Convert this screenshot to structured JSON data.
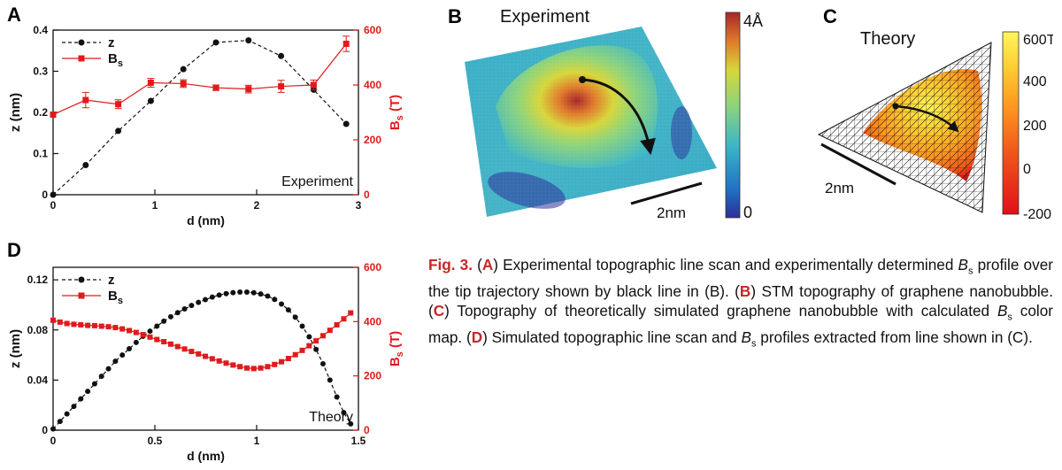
{
  "panels": {
    "a": "A",
    "b": "B",
    "c": "C",
    "d": "D"
  },
  "chart_data": [
    {
      "id": "A",
      "type": "line",
      "annotation": "Experiment",
      "xlabel": "d (nm)",
      "ylabel": "z (nm)",
      "y2label": "Bs (T)",
      "xlim": [
        0,
        3
      ],
      "ylim": [
        0,
        0.4
      ],
      "y2lim": [
        0,
        600
      ],
      "xticks": [
        "0",
        "1",
        "2",
        "3"
      ],
      "yticks": [
        "0",
        "0.1",
        "0.2",
        "0.3",
        "0.4"
      ],
      "y2ticks": [
        "0",
        "200",
        "400",
        "600"
      ],
      "series": [
        {
          "name": "z",
          "axis": "left",
          "color": "#111111",
          "marker": "circle",
          "dashed": true,
          "x": [
            0,
            0.32,
            0.64,
            0.96,
            1.28,
            1.6,
            1.92,
            2.24,
            2.56,
            2.88
          ],
          "y": [
            0,
            0.072,
            0.155,
            0.228,
            0.305,
            0.37,
            0.375,
            0.337,
            0.255,
            0.172
          ]
        },
        {
          "name": "Bs",
          "axis": "right",
          "color": "#e01b1b",
          "marker": "square",
          "dashed": false,
          "x": [
            0,
            0.32,
            0.64,
            0.96,
            1.28,
            1.6,
            1.92,
            2.24,
            2.56,
            2.88
          ],
          "y": [
            292,
            345,
            330,
            408,
            405,
            390,
            385,
            395,
            400,
            550
          ],
          "err": [
            0,
            28,
            16,
            16,
            14,
            10,
            14,
            22,
            18,
            28
          ]
        }
      ]
    },
    {
      "id": "D",
      "type": "line",
      "annotation": "Theory",
      "xlabel": "d (nm)",
      "ylabel": "z (nm)",
      "y2label": "Bs (T)",
      "xlim": [
        0,
        1.5
      ],
      "ylim": [
        0,
        0.13
      ],
      "y2lim": [
        0,
        600
      ],
      "xticks": [
        "0",
        "0.5",
        "1",
        "1.5"
      ],
      "yticks": [
        "0",
        "0.04",
        "0.08",
        "0.12"
      ],
      "y2ticks": [
        "0",
        "200",
        "400",
        "600"
      ],
      "series": [
        {
          "name": "z",
          "axis": "left",
          "color": "#111111",
          "marker": "circle",
          "dashed": true,
          "x": [
            0,
            0.034,
            0.068,
            0.102,
            0.136,
            0.17,
            0.204,
            0.238,
            0.272,
            0.306,
            0.34,
            0.374,
            0.408,
            0.442,
            0.476,
            0.51,
            0.544,
            0.578,
            0.612,
            0.646,
            0.68,
            0.714,
            0.748,
            0.782,
            0.816,
            0.85,
            0.884,
            0.918,
            0.952,
            0.986,
            1.02,
            1.054,
            1.088,
            1.122,
            1.156,
            1.19,
            1.224,
            1.258,
            1.292,
            1.326,
            1.36,
            1.394,
            1.428,
            1.462
          ],
          "y": [
            0.001,
            0.007,
            0.013,
            0.019,
            0.025,
            0.031,
            0.037,
            0.043,
            0.049,
            0.055,
            0.06,
            0.065,
            0.07,
            0.075,
            0.079,
            0.083,
            0.087,
            0.0905,
            0.0938,
            0.0968,
            0.0995,
            0.102,
            0.1042,
            0.1062,
            0.1078,
            0.109,
            0.1098,
            0.1102,
            0.1102,
            0.1097,
            0.1087,
            0.107,
            0.1044,
            0.1007,
            0.096,
            0.0902,
            0.083,
            0.0745,
            0.0645,
            0.053,
            0.04,
            0.0265,
            0.014,
            0.005
          ]
        },
        {
          "name": "Bs",
          "axis": "right",
          "color": "#e01b1b",
          "marker": "square",
          "dashed": false,
          "x": [
            0,
            0.034,
            0.068,
            0.102,
            0.136,
            0.17,
            0.204,
            0.238,
            0.272,
            0.306,
            0.34,
            0.374,
            0.408,
            0.442,
            0.476,
            0.51,
            0.544,
            0.578,
            0.612,
            0.646,
            0.68,
            0.714,
            0.748,
            0.782,
            0.816,
            0.85,
            0.884,
            0.918,
            0.952,
            0.986,
            1.02,
            1.054,
            1.088,
            1.122,
            1.156,
            1.19,
            1.224,
            1.258,
            1.292,
            1.326,
            1.36,
            1.394,
            1.428,
            1.462
          ],
          "y": [
            405,
            398,
            393,
            390,
            388,
            386,
            385,
            383,
            381,
            378,
            373,
            367,
            360,
            352,
            343,
            334,
            326,
            317,
            308,
            299,
            290,
            281,
            272,
            263,
            255,
            247,
            240,
            234,
            229,
            227,
            229,
            234,
            242,
            252,
            264,
            278,
            294,
            311,
            329,
            348,
            368,
            388,
            410,
            432
          ]
        }
      ]
    }
  ],
  "image_b": {
    "label": "Experiment",
    "colorbar_max": "4Å",
    "colorbar_min": "0",
    "scalebar": "2nm",
    "colors": [
      "#2b2e9a",
      "#1f77c8",
      "#3bb6c8",
      "#8fd47a",
      "#d7d63a",
      "#e07a2a",
      "#a6262a"
    ]
  },
  "image_c": {
    "label": "Theory",
    "colorbar_ticks": [
      "600T",
      "400",
      "200",
      "0",
      "-200"
    ],
    "scalebar": "2nm",
    "colors": [
      "#fff65a",
      "#ffcc33",
      "#ff9922",
      "#f05a1a",
      "#e0101a"
    ]
  },
  "caption": {
    "fig": "Fig. 3.",
    "a_open": "(",
    "a": "A",
    "a_close": ")",
    "a_text1": " Experimental topographic line scan and experimentally determined ",
    "b_sym": "B",
    "b_sub": "s",
    "a_text2": " profile over the tip trajectory shown by black line in (B). (",
    "b": "B",
    "b_text": ") STM topography of graphene nanobubble. (",
    "c": "C",
    "c_text1": ") Topography of theoretically simulated graphene nanobubble with calculated ",
    "c_text2": " color map. (",
    "d": "D",
    "d_text1": ") Simulated topographic line scan and ",
    "d_text2": " profiles extracted from line shown in (C)."
  }
}
